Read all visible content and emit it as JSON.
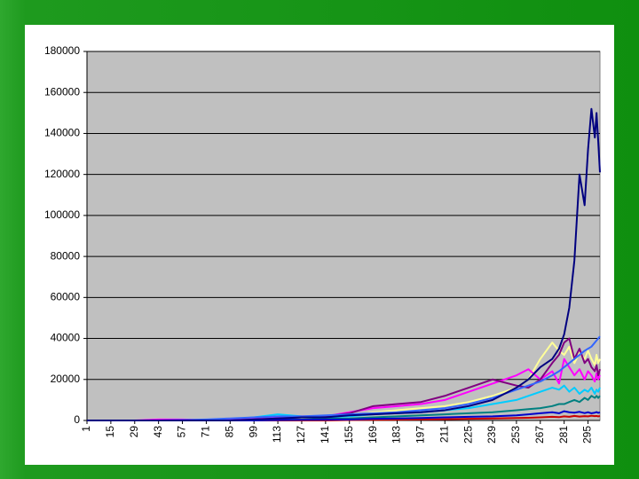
{
  "chart_data": {
    "type": "line",
    "x": [
      1,
      15,
      29,
      43,
      57,
      71,
      85,
      99,
      113,
      127,
      141,
      155,
      169,
      183,
      197,
      211,
      225,
      239,
      253,
      260,
      267,
      274,
      278,
      281,
      284,
      287,
      290,
      293,
      295,
      297,
      299,
      300,
      301,
      302
    ],
    "xlim": [
      1,
      302
    ],
    "xticks": [
      1,
      15,
      29,
      43,
      57,
      71,
      85,
      99,
      113,
      127,
      141,
      155,
      169,
      183,
      197,
      211,
      225,
      239,
      253,
      267,
      281,
      295
    ],
    "ylim": [
      0,
      180000
    ],
    "yticks": [
      0,
      20000,
      40000,
      60000,
      80000,
      100000,
      120000,
      140000,
      160000,
      180000
    ],
    "grid": true,
    "plot_background": "#c0c0c0",
    "series": [
      {
        "color": "#ffff99",
        "values": [
          0,
          0,
          0,
          200,
          500,
          300,
          800,
          1000,
          1500,
          1000,
          1500,
          2000,
          4000,
          5000,
          6000,
          7000,
          9000,
          12000,
          16000,
          20000,
          30000,
          38000,
          34000,
          32000,
          36000,
          28000,
          33000,
          30000,
          34000,
          30000,
          27000,
          32000,
          28000,
          30000
        ]
      },
      {
        "color": "#00ccff",
        "values": [
          0,
          0,
          0,
          0,
          0,
          0,
          500,
          1500,
          3000,
          2000,
          1500,
          2000,
          3000,
          3500,
          4000,
          5000,
          6000,
          8000,
          10000,
          12000,
          14000,
          16000,
          15000,
          17000,
          14000,
          16000,
          13000,
          15000,
          14000,
          16000,
          13000,
          15000,
          14000,
          16000
        ]
      },
      {
        "color": "#008080",
        "values": [
          0,
          0,
          0,
          0,
          0,
          0,
          0,
          0,
          500,
          500,
          800,
          1000,
          1500,
          2000,
          2500,
          3000,
          3500,
          4000,
          5000,
          5500,
          6000,
          7000,
          8000,
          8000,
          9000,
          10000,
          9000,
          11000,
          10000,
          12000,
          11000,
          12000,
          11000,
          12000
        ]
      },
      {
        "color": "#cc0000",
        "values": [
          0,
          0,
          0,
          0,
          0,
          0,
          0,
          0,
          0,
          0,
          0,
          200,
          300,
          400,
          500,
          600,
          800,
          1000,
          1200,
          1300,
          1500,
          1800,
          1600,
          2000,
          1800,
          2200,
          1900,
          2100,
          2000,
          2300,
          2100,
          2200,
          2000,
          2200
        ]
      },
      {
        "color": "#0000cc",
        "values": [
          0,
          0,
          0,
          0,
          0,
          0,
          0,
          0,
          200,
          300,
          400,
          500,
          800,
          1000,
          1200,
          1500,
          1800,
          2000,
          2500,
          3000,
          3500,
          4000,
          3500,
          4500,
          4000,
          3800,
          4200,
          3600,
          4000,
          3500,
          3800,
          4100,
          3700,
          4000
        ]
      },
      {
        "color": "#ff00ff",
        "values": [
          0,
          0,
          0,
          500,
          500,
          200,
          500,
          1000,
          1500,
          2000,
          2000,
          4000,
          6000,
          7000,
          8000,
          10000,
          14000,
          18000,
          22000,
          25000,
          20000,
          24000,
          18000,
          30000,
          26000,
          22000,
          25000,
          20000,
          24000,
          22000,
          19000,
          23000,
          20000,
          22000
        ]
      },
      {
        "color": "#800080",
        "values": [
          0,
          0,
          0,
          0,
          0,
          0,
          0,
          500,
          1000,
          1500,
          2000,
          3500,
          7000,
          8000,
          9000,
          12000,
          16000,
          20000,
          17000,
          16000,
          20000,
          28000,
          32000,
          38000,
          40000,
          30000,
          35000,
          28000,
          30000,
          26000,
          24000,
          27000,
          22000,
          25000
        ]
      },
      {
        "color": "#3366ff",
        "values": [
          0,
          0,
          0,
          0,
          200,
          500,
          1000,
          1500,
          2000,
          2000,
          2500,
          3000,
          3500,
          4000,
          5000,
          6000,
          8000,
          11000,
          15000,
          17000,
          19000,
          22000,
          24000,
          26000,
          28000,
          30000,
          32000,
          34000,
          35000,
          36000,
          38000,
          39000,
          40000,
          41000
        ]
      },
      {
        "color": "#000080",
        "values": [
          0,
          0,
          0,
          0,
          0,
          0,
          0,
          500,
          1000,
          1500,
          1500,
          2500,
          3000,
          3500,
          4000,
          5000,
          7000,
          10000,
          16000,
          20000,
          26000,
          30000,
          35000,
          42000,
          55000,
          78000,
          120000,
          105000,
          132000,
          152000,
          138000,
          150000,
          136000,
          121000
        ]
      }
    ]
  }
}
